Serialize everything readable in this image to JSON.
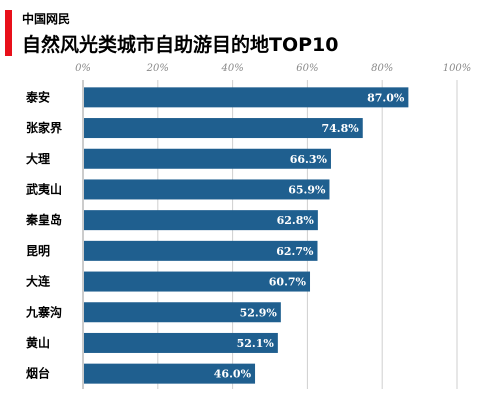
{
  "header": {
    "brand": "中国网民",
    "accent_color": "#e8101a"
  },
  "chart_data": {
    "type": "bar",
    "orientation": "horizontal",
    "title": "自然风光类城市自助游目的地TOP10",
    "categories": [
      "泰安",
      "张家界",
      "大理",
      "武夷山",
      "秦皇岛",
      "昆明",
      "大连",
      "九寨沟",
      "黄山",
      "烟台"
    ],
    "values": [
      87.0,
      74.8,
      66.3,
      65.9,
      62.8,
      62.7,
      60.7,
      52.9,
      52.1,
      46.0
    ],
    "value_labels": [
      "87.0%",
      "74.8%",
      "66.3%",
      "65.9%",
      "62.8%",
      "62.7%",
      "60.7%",
      "52.9%",
      "52.1%",
      "46.0%"
    ],
    "xlim": [
      0,
      100
    ],
    "ticks": [
      0,
      20,
      40,
      60,
      80,
      100
    ],
    "tick_labels": [
      "0%",
      "20%",
      "40%",
      "60%",
      "80%",
      "100%"
    ],
    "axis_position": "top",
    "grid": true,
    "bar_color": "#1f5f8f",
    "grid_color": "#cfcfcf"
  }
}
